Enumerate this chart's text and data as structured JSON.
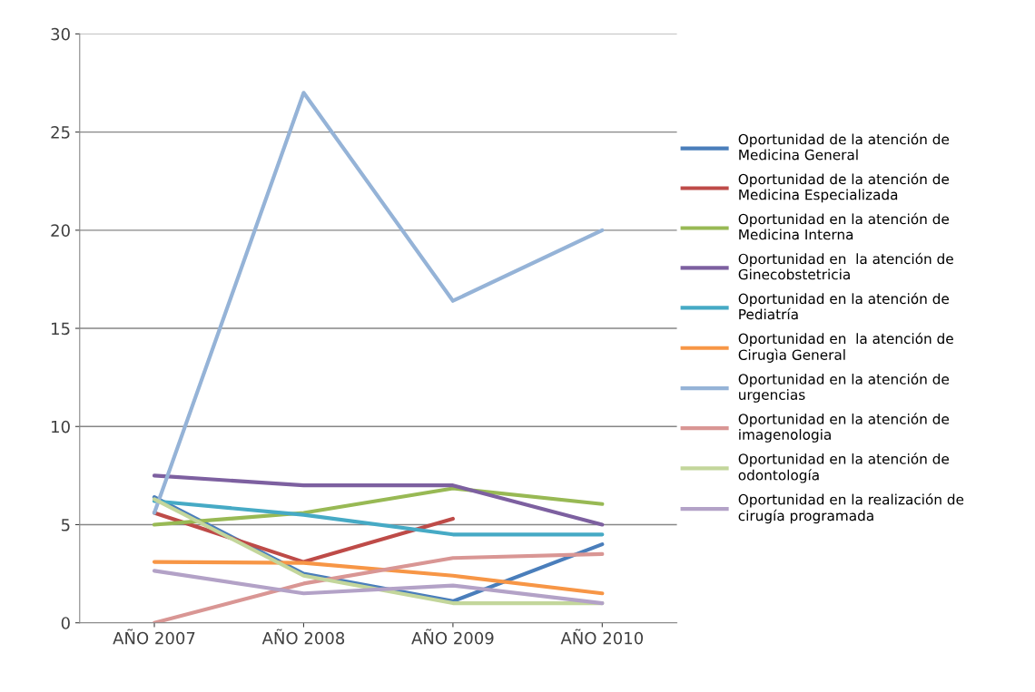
{
  "chart_data": {
    "type": "line",
    "categories": [
      "AÑO 2007",
      "AÑO 2008",
      "AÑO 2009",
      "AÑO 2010"
    ],
    "ylim": [
      0,
      30
    ],
    "yticks": [
      0,
      5,
      10,
      15,
      20,
      25,
      30
    ],
    "grid": "y",
    "legend": "right",
    "marker": "none",
    "line_style": "solid",
    "series": [
      {
        "name": "Oportunidad de la atención de Medicina General",
        "color": "#4a7ebb",
        "values": [
          6.4,
          2.5,
          1.1,
          4.0
        ]
      },
      {
        "name": "Oportunidad de la atención de Medicina Especializada",
        "color": "#be4b48",
        "values": [
          5.6,
          3.1,
          5.3,
          null
        ]
      },
      {
        "name": "Oportunidad en la atención de Medicina Interna",
        "color": "#98b954",
        "values": [
          5.0,
          5.6,
          6.85,
          6.05
        ]
      },
      {
        "name": "Oportunidad en  la atención de Ginecobstetricia",
        "color": "#7d60a0",
        "values": [
          7.5,
          7.0,
          7.0,
          5.0
        ]
      },
      {
        "name": "Oportunidad en la atención de Pediatría",
        "color": "#46aac5",
        "values": [
          6.2,
          5.5,
          4.5,
          4.5
        ]
      },
      {
        "name": "Oportunidad en  la atención de Cirugìa General",
        "color": "#f79646",
        "values": [
          3.1,
          3.05,
          2.4,
          1.5
        ]
      },
      {
        "name": "Oportunidad en la atención de urgencias",
        "color": "#95b3d7",
        "values": [
          5.6,
          27.0,
          16.4,
          20.0
        ]
      },
      {
        "name": "Oportunidad en la atención de imagenologia",
        "color": "#d99694",
        "values": [
          0.0,
          2.0,
          3.3,
          3.5
        ]
      },
      {
        "name": "Oportunidad en la atención de odontología",
        "color": "#c3d69b",
        "values": [
          6.3,
          2.4,
          1.0,
          1.0
        ]
      },
      {
        "name": "Oportunidad en la realización de cirugía programada",
        "color": "#b3a2c7",
        "values": [
          2.65,
          1.5,
          1.9,
          1.0
        ]
      }
    ]
  }
}
